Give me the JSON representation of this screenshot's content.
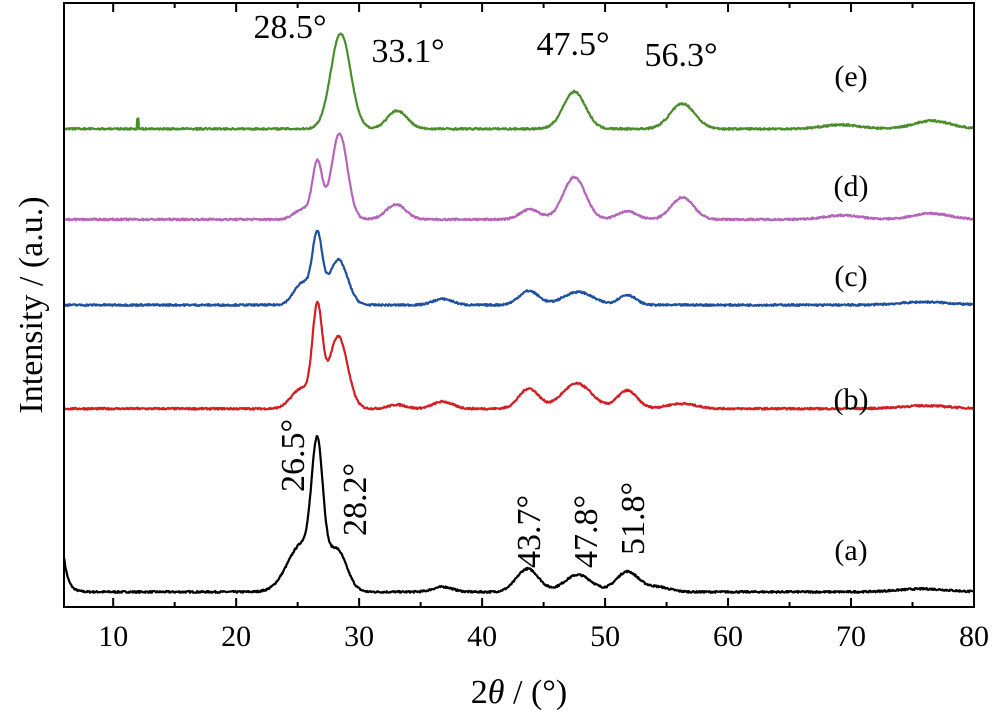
{
  "chart_data": {
    "type": "line",
    "title": "",
    "xlabel_prefix": "2",
    "xlabel_symbol": "θ",
    "xlabel_suffix": " / (°)",
    "ylabel": "Intensity / (a.u.)",
    "xlim": [
      6,
      80
    ],
    "xticks": [
      10,
      20,
      30,
      40,
      50,
      60,
      70,
      80
    ],
    "ylim": [
      0,
      6
    ],
    "grid": false,
    "series": [
      {
        "name": "(a)",
        "color": "#000000",
        "baseline": 0.15,
        "start_value": 0.5,
        "peaks": [
          {
            "x": 25.4,
            "h": 0.48,
            "w": 1.2
          },
          {
            "x": 26.6,
            "h": 1.2,
            "w": 0.45
          },
          {
            "x": 28.2,
            "h": 0.4,
            "w": 0.8
          },
          {
            "x": 36.8,
            "h": 0.05,
            "w": 0.8
          },
          {
            "x": 43.7,
            "h": 0.23,
            "w": 0.9
          },
          {
            "x": 47.8,
            "h": 0.17,
            "w": 1.1
          },
          {
            "x": 51.8,
            "h": 0.2,
            "w": 0.9
          },
          {
            "x": 54.2,
            "h": 0.05,
            "w": 1.0
          },
          {
            "x": 75.8,
            "h": 0.03,
            "w": 2.0
          }
        ]
      },
      {
        "name": "(b)",
        "color": "#d11f24",
        "baseline": 1.97,
        "peaks": [
          {
            "x": 25.3,
            "h": 0.2,
            "w": 0.8
          },
          {
            "x": 26.6,
            "h": 0.95,
            "w": 0.4
          },
          {
            "x": 28.3,
            "h": 0.72,
            "w": 0.75
          },
          {
            "x": 33.1,
            "h": 0.04,
            "w": 0.7
          },
          {
            "x": 36.8,
            "h": 0.07,
            "w": 0.8
          },
          {
            "x": 43.8,
            "h": 0.2,
            "w": 0.8
          },
          {
            "x": 47.7,
            "h": 0.25,
            "w": 1.2
          },
          {
            "x": 51.8,
            "h": 0.18,
            "w": 0.8
          },
          {
            "x": 56.2,
            "h": 0.05,
            "w": 1.2
          },
          {
            "x": 76.0,
            "h": 0.03,
            "w": 2.0
          }
        ]
      },
      {
        "name": "(c)",
        "color": "#1f4fa0",
        "baseline": 3.0,
        "peaks": [
          {
            "x": 25.4,
            "h": 0.22,
            "w": 0.7
          },
          {
            "x": 26.6,
            "h": 0.65,
            "w": 0.4
          },
          {
            "x": 28.3,
            "h": 0.45,
            "w": 0.75
          },
          {
            "x": 36.8,
            "h": 0.06,
            "w": 0.8
          },
          {
            "x": 43.8,
            "h": 0.14,
            "w": 0.8
          },
          {
            "x": 47.8,
            "h": 0.13,
            "w": 1.2
          },
          {
            "x": 51.8,
            "h": 0.1,
            "w": 0.7
          },
          {
            "x": 76.0,
            "h": 0.03,
            "w": 2.0
          }
        ]
      },
      {
        "name": "(d)",
        "color": "#b565b9",
        "baseline": 3.85,
        "peaks": [
          {
            "x": 25.4,
            "h": 0.1,
            "w": 0.7
          },
          {
            "x": 26.6,
            "h": 0.55,
            "w": 0.4
          },
          {
            "x": 28.4,
            "h": 0.85,
            "w": 0.65
          },
          {
            "x": 33.0,
            "h": 0.15,
            "w": 0.8
          },
          {
            "x": 43.9,
            "h": 0.1,
            "w": 0.8
          },
          {
            "x": 47.5,
            "h": 0.42,
            "w": 0.9
          },
          {
            "x": 51.8,
            "h": 0.08,
            "w": 0.8
          },
          {
            "x": 56.3,
            "h": 0.22,
            "w": 0.9
          },
          {
            "x": 69.3,
            "h": 0.04,
            "w": 1.5
          },
          {
            "x": 76.5,
            "h": 0.06,
            "w": 1.5
          }
        ]
      },
      {
        "name": "(e)",
        "color": "#4c8c2b",
        "baseline": 4.75,
        "spike_x": 12.0,
        "peaks": [
          {
            "x": 28.5,
            "h": 0.95,
            "w": 0.8
          },
          {
            "x": 33.1,
            "h": 0.18,
            "w": 0.8
          },
          {
            "x": 47.5,
            "h": 0.37,
            "w": 0.9
          },
          {
            "x": 56.3,
            "h": 0.25,
            "w": 1.0
          },
          {
            "x": 69.2,
            "h": 0.04,
            "w": 1.5
          },
          {
            "x": 76.6,
            "h": 0.08,
            "w": 1.5
          }
        ]
      }
    ],
    "top_annotations": [
      {
        "text": "28.5°",
        "x": 28.5
      },
      {
        "text": "33.1°",
        "x": 33.1
      },
      {
        "text": "47.5°",
        "x": 47.5
      },
      {
        "text": "56.3°",
        "x": 56.3
      }
    ],
    "bottom_annotations": [
      {
        "text": "26.5°",
        "x": 26.5
      },
      {
        "text": "28.2°",
        "x": 28.2
      },
      {
        "text": "43.7°",
        "x": 43.7
      },
      {
        "text": "47.8°",
        "x": 47.8
      },
      {
        "text": "51.8°",
        "x": 51.8
      }
    ]
  }
}
